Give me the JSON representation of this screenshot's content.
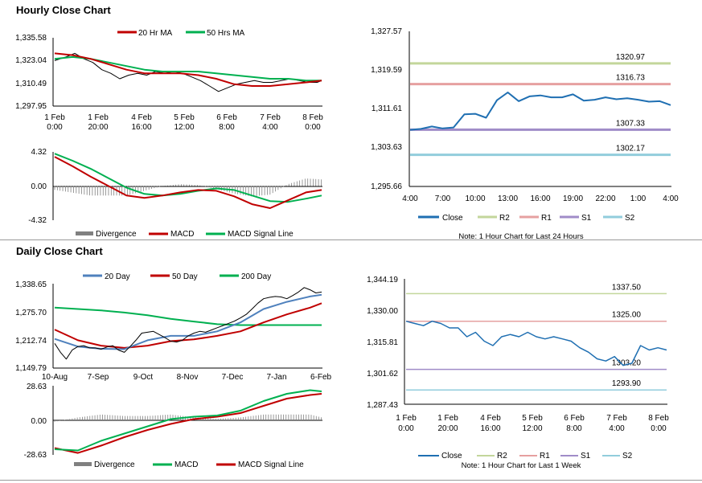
{
  "titles": {
    "hourly": "Hourly Close Chart",
    "daily": "Daily Close Chart"
  },
  "colors": {
    "ma20": "#c00000",
    "ma50": "#00b050",
    "sma20": "#4f81bd",
    "sma200": "#00b050",
    "close": "#1f6fb2",
    "r2": "#c3d69b",
    "r1": "#e6a0a0",
    "s1": "#a08cc8",
    "s2": "#92cddc",
    "divergence": "#808080"
  },
  "chart_data": [
    {
      "id": "hourly-price",
      "type": "line",
      "title": "Hourly Close Chart",
      "legend": [
        "20 Hr MA",
        "50 Hrs MA"
      ],
      "x_tick_labels": [
        [
          "1 Feb",
          "0:00"
        ],
        [
          "1 Feb",
          "20:00"
        ],
        [
          "4 Feb",
          "16:00"
        ],
        [
          "5 Feb",
          "12:00"
        ],
        [
          "6 Feb",
          "8:00"
        ],
        [
          "7 Feb",
          "4:00"
        ],
        [
          "8 Feb",
          "0:00"
        ]
      ],
      "y_tick_labels": [
        "1,335.58",
        "1,323.04",
        "1,310.49",
        "1,297.95"
      ],
      "ylim": [
        1297.95,
        1335.58
      ],
      "series": [
        {
          "name": "Close",
          "x": [
            0,
            5,
            9,
            13,
            17,
            21,
            25,
            29,
            33,
            37,
            41,
            45,
            49,
            53,
            57,
            61,
            65,
            69,
            73,
            77,
            81,
            85,
            89,
            93,
            97,
            101,
            105,
            109,
            113,
            117,
            119
          ],
          "values": [
            1323,
            1325,
            1327,
            1324,
            1322,
            1318,
            1316,
            1313,
            1315,
            1316,
            1315,
            1317,
            1316,
            1317,
            1316,
            1314,
            1312,
            1309,
            1306,
            1308,
            1310,
            1311,
            1312,
            1311,
            1311,
            1312,
            1313,
            1312,
            1311,
            1311,
            1312
          ]
        },
        {
          "name": "20 Hr MA",
          "x": [
            0,
            8,
            16,
            24,
            32,
            40,
            48,
            56,
            64,
            72,
            80,
            88,
            96,
            104,
            112,
            119
          ],
          "values": [
            1327,
            1326,
            1324,
            1321,
            1318,
            1316,
            1316,
            1316,
            1315,
            1313,
            1310,
            1309,
            1309,
            1310,
            1311,
            1312
          ]
        },
        {
          "name": "50 Hrs MA",
          "x": [
            0,
            8,
            16,
            24,
            32,
            40,
            48,
            56,
            64,
            72,
            80,
            88,
            96,
            104,
            112,
            119
          ],
          "values": [
            1324,
            1325,
            1324,
            1322,
            1320,
            1318,
            1317,
            1317,
            1317,
            1316,
            1315,
            1314,
            1313,
            1313,
            1312,
            1312
          ]
        }
      ]
    },
    {
      "id": "hourly-macd",
      "type": "line",
      "legend": [
        "Divergence",
        "MACD",
        "MACD Signal Line"
      ],
      "y_tick_labels": [
        "4.32",
        "0.00",
        "-4.32"
      ],
      "ylim": [
        -4.32,
        4.32
      ],
      "series": [
        {
          "name": "MACD",
          "x": [
            0,
            8,
            16,
            24,
            32,
            40,
            48,
            56,
            64,
            72,
            80,
            88,
            96,
            104,
            112,
            119
          ],
          "values": [
            3.7,
            2.5,
            1.2,
            0.0,
            -1.2,
            -1.5,
            -1.2,
            -0.8,
            -0.5,
            -0.6,
            -1.3,
            -2.3,
            -2.8,
            -1.8,
            -0.8,
            -0.5
          ]
        },
        {
          "name": "MACD Signal Line",
          "x": [
            0,
            8,
            16,
            24,
            32,
            40,
            48,
            56,
            64,
            72,
            80,
            88,
            96,
            104,
            112,
            119
          ],
          "values": [
            4.1,
            3.2,
            2.2,
            1.0,
            -0.2,
            -1.0,
            -1.2,
            -1.0,
            -0.6,
            -0.3,
            -0.5,
            -1.2,
            -1.9,
            -2.0,
            -1.6,
            -1.2
          ]
        }
      ]
    },
    {
      "id": "hourly-24h",
      "type": "line",
      "note": "Note: 1 Hour Chart for Last 24 Hours",
      "legend": [
        "Close",
        "R2",
        "R1",
        "S1",
        "S2"
      ],
      "x_tick_labels": [
        "4:00",
        "7:00",
        "10:00",
        "13:00",
        "16:00",
        "19:00",
        "22:00",
        "1:00",
        "4:00"
      ],
      "y_tick_labels": [
        "1,327.57",
        "1,319.59",
        "1,311.61",
        "1,303.63",
        "1,295.66"
      ],
      "ylim": [
        1295.66,
        1327.57
      ],
      "levels": [
        {
          "name": "R2",
          "value": 1320.97,
          "label": "1320.97"
        },
        {
          "name": "R1",
          "value": 1316.73,
          "label": "1316.73"
        },
        {
          "name": "S1",
          "value": 1307.33,
          "label": "1307.33"
        },
        {
          "name": "S2",
          "value": 1302.17,
          "label": "1302.17"
        }
      ],
      "series": [
        {
          "name": "Close",
          "x": [
            0,
            1,
            2,
            3,
            4,
            5,
            6,
            7,
            8,
            9,
            10,
            11,
            12,
            13,
            14,
            15,
            16,
            17,
            18,
            19,
            20,
            21,
            22,
            23,
            24
          ],
          "values": [
            1307.3,
            1307.5,
            1308.0,
            1307.6,
            1307.8,
            1310.5,
            1310.6,
            1309.8,
            1313.4,
            1315.0,
            1313.2,
            1314.2,
            1314.4,
            1314.0,
            1314.0,
            1314.6,
            1313.3,
            1313.5,
            1314.0,
            1313.6,
            1313.8,
            1313.5,
            1313.1,
            1313.2,
            1312.4
          ]
        }
      ]
    },
    {
      "id": "daily-price",
      "type": "line",
      "title": "Daily Close Chart",
      "legend": [
        "20 Day",
        "50 Day",
        "200 Day"
      ],
      "x_tick_labels": [
        "10-Aug",
        "7-Sep",
        "9-Oct",
        "8-Nov",
        "7-Dec",
        "7-Jan",
        "6-Feb"
      ],
      "y_tick_labels": [
        "1,338.65",
        "1,275.70",
        "1,212.74",
        "1,149.79"
      ],
      "ylim": [
        1149.79,
        1338.65
      ],
      "series": [
        {
          "name": "Close",
          "x": [
            0,
            3,
            6,
            9,
            12,
            15,
            18,
            21,
            24,
            27,
            30,
            33,
            36,
            39,
            42,
            45,
            48,
            51,
            54,
            57,
            60,
            63,
            66,
            69,
            72,
            75,
            78,
            81,
            84,
            87,
            90,
            93,
            96,
            99,
            102,
            105,
            108,
            111,
            114,
            117,
            120,
            123,
            126,
            129,
            132,
            135,
            138
          ],
          "values": [
            1205,
            1185,
            1170,
            1190,
            1198,
            1200,
            1195,
            1195,
            1192,
            1197,
            1200,
            1190,
            1185,
            1198,
            1212,
            1228,
            1230,
            1232,
            1225,
            1218,
            1210,
            1208,
            1212,
            1222,
            1228,
            1232,
            1230,
            1235,
            1240,
            1245,
            1250,
            1255,
            1262,
            1270,
            1282,
            1295,
            1305,
            1308,
            1310,
            1309,
            1305,
            1312,
            1320,
            1330,
            1325,
            1318,
            1320
          ]
        },
        {
          "name": "20 Day",
          "x": [
            0,
            12,
            24,
            36,
            48,
            60,
            72,
            84,
            96,
            108,
            120,
            132,
            138
          ],
          "values": [
            1215,
            1198,
            1193,
            1192,
            1212,
            1222,
            1222,
            1232,
            1252,
            1282,
            1298,
            1310,
            1314
          ]
        },
        {
          "name": "50 Day",
          "x": [
            0,
            12,
            24,
            36,
            48,
            60,
            72,
            84,
            96,
            108,
            120,
            132,
            138
          ],
          "values": [
            1236,
            1212,
            1200,
            1195,
            1200,
            1210,
            1214,
            1222,
            1232,
            1252,
            1270,
            1285,
            1295
          ]
        },
        {
          "name": "200 Day",
          "x": [
            0,
            12,
            24,
            36,
            48,
            60,
            72,
            84,
            96,
            108,
            120,
            132,
            138
          ],
          "values": [
            1285,
            1282,
            1279,
            1274,
            1268,
            1260,
            1254,
            1248,
            1246,
            1246,
            1246,
            1246,
            1246
          ]
        }
      ]
    },
    {
      "id": "daily-macd",
      "type": "line",
      "legend": [
        "Divergence",
        "MACD",
        "MACD Signal Line"
      ],
      "y_tick_labels": [
        "28.63",
        "0.00",
        "-28.63"
      ],
      "ylim": [
        -28.63,
        28.63
      ],
      "series": [
        {
          "name": "MACD",
          "x": [
            0,
            12,
            24,
            36,
            48,
            60,
            72,
            84,
            96,
            108,
            120,
            132,
            138
          ],
          "values": [
            -24,
            -25,
            -17,
            -11,
            -5,
            1,
            3,
            4,
            8,
            16,
            22,
            25,
            24
          ]
        },
        {
          "name": "MACD Signal Line",
          "x": [
            0,
            12,
            24,
            36,
            48,
            60,
            72,
            84,
            96,
            108,
            120,
            132,
            138
          ],
          "values": [
            -23,
            -27,
            -21,
            -14,
            -8,
            -3,
            1,
            3,
            6,
            12,
            18,
            21,
            22
          ]
        }
      ]
    },
    {
      "id": "daily-week",
      "type": "line",
      "note": "Note: 1 Hour Chart for Last 1 Week",
      "legend": [
        "Close",
        "R2",
        "R1",
        "S1",
        "S2"
      ],
      "x_tick_labels": [
        [
          "1 Feb",
          "0:00"
        ],
        [
          "1 Feb",
          "20:00"
        ],
        [
          "4 Feb",
          "16:00"
        ],
        [
          "5 Feb",
          "12:00"
        ],
        [
          "6 Feb",
          "8:00"
        ],
        [
          "7 Feb",
          "4:00"
        ],
        [
          "8 Feb",
          "0:00"
        ]
      ],
      "y_tick_labels": [
        "1,344.19",
        "1,330.00",
        "1,315.81",
        "1,301.62",
        "1,287.43"
      ],
      "ylim": [
        1287.43,
        1344.19
      ],
      "levels": [
        {
          "name": "R2",
          "value": 1337.5,
          "label": "1337.50"
        },
        {
          "name": "R1",
          "value": 1325.0,
          "label": "1325.00"
        },
        {
          "name": "S1",
          "value": 1303.2,
          "label": "1303.20"
        },
        {
          "name": "S2",
          "value": 1293.9,
          "label": "1293.90"
        }
      ],
      "series": [
        {
          "name": "Close",
          "x": [
            0,
            4,
            8,
            12,
            16,
            20,
            24,
            28,
            32,
            36,
            40,
            44,
            48,
            52,
            56,
            60,
            64,
            68,
            72,
            76,
            80,
            84,
            88,
            92,
            96,
            100,
            104,
            108,
            112,
            116,
            120
          ],
          "values": [
            1325,
            1324,
            1323,
            1325,
            1324,
            1322,
            1322,
            1318,
            1320,
            1316,
            1314,
            1318,
            1319,
            1318,
            1320,
            1318,
            1317,
            1318,
            1317,
            1316,
            1313,
            1311,
            1308,
            1307,
            1309,
            1305,
            1306,
            1314,
            1312,
            1313,
            1312
          ]
        }
      ]
    }
  ]
}
